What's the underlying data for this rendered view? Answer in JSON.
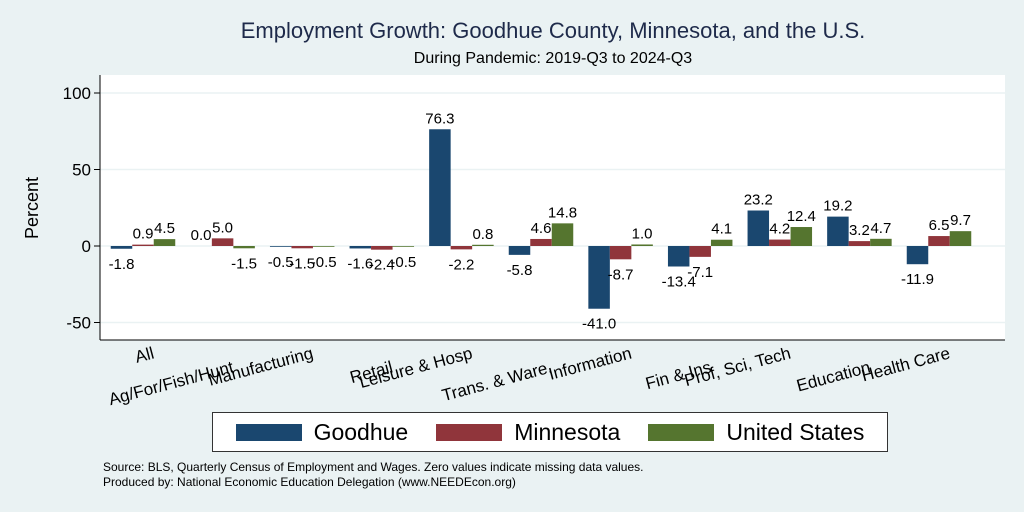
{
  "chart_data": {
    "type": "bar",
    "title": "Employment Growth: Goodhue County, Minnesota, and the U.S.",
    "subtitle": "During Pandemic: 2019-Q3 to 2024-Q3",
    "xlabel": "",
    "ylabel": "Percent",
    "ylim": [
      -60,
      110
    ],
    "yticks": [
      100,
      50,
      0,
      -50
    ],
    "grid": true,
    "legend_position": "bottom",
    "categories": [
      "All",
      "Ag/For/Fish/Hunt",
      "Manufacturing",
      "Retail",
      "Leisure & Hosp",
      "Trans. & Ware.",
      "Information",
      "Fin & Ins",
      "Prof, Sci, Tech",
      "Education",
      "Health Care"
    ],
    "series": [
      {
        "name": "Goodhue",
        "color": "#1a476f",
        "values": [
          -1.8,
          0.0,
          -0.5,
          -1.6,
          76.3,
          -5.8,
          -41.0,
          -13.4,
          23.2,
          19.2,
          -11.9
        ]
      },
      {
        "name": "Minnesota",
        "color": "#90353b",
        "values": [
          0.9,
          5.0,
          -1.5,
          -2.4,
          -2.2,
          4.6,
          -8.7,
          -7.1,
          4.2,
          3.2,
          6.5
        ]
      },
      {
        "name": "United States",
        "color": "#55752f",
        "values": [
          4.5,
          -1.5,
          -0.5,
          -0.5,
          0.8,
          14.8,
          1.0,
          4.1,
          12.4,
          4.7,
          9.7
        ]
      }
    ]
  },
  "notes": {
    "source": "Source: BLS, Quarterly Census of Employment and Wages. Zero values indicate missing data values.",
    "produced": "Produced by: National Economic Education Delegation (www.NEEDEcon.org)"
  }
}
